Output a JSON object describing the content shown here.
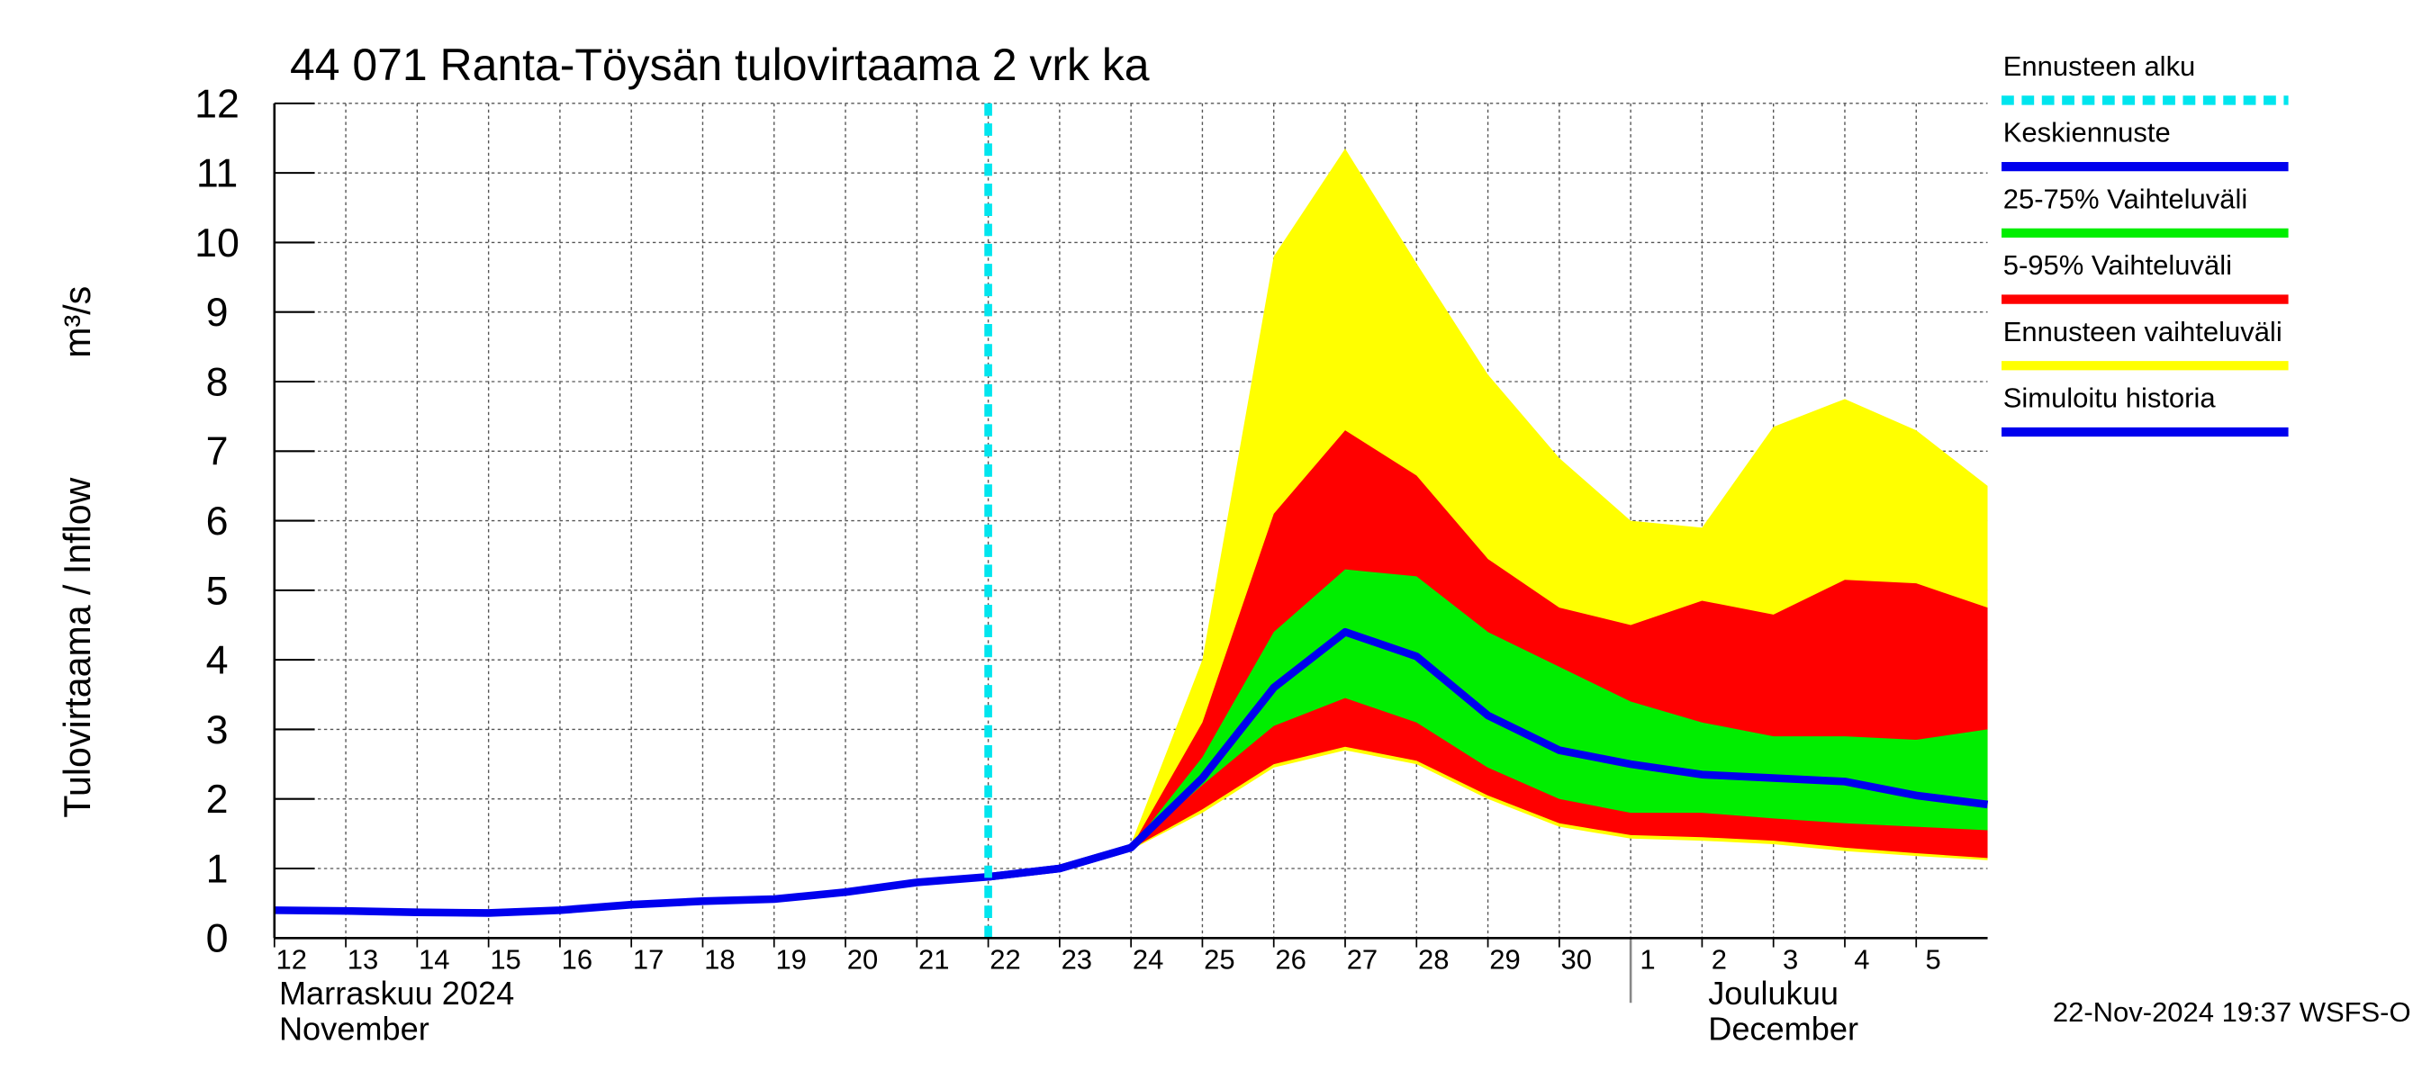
{
  "chart_data": {
    "type": "line",
    "title": "44 071 Ranta-Töysän tulovirtaama 2 vrk ka",
    "y_label": "Tulovirtaama / Inflow",
    "y_unit": "m³/s",
    "footer": "22-Nov-2024 19:37 WSFS-O",
    "months": [
      {
        "label": "Marraskuu 2024",
        "label_en": "November",
        "start": "2024-11-12"
      },
      {
        "label": "Joulukuu",
        "label_en": "December",
        "start": "2024-12-01"
      }
    ],
    "forecast_start": {
      "name": "Ennusteen alku",
      "color": "#00e5ee",
      "x": "2024-11-22"
    },
    "x": [
      "2024-11-12",
      "2024-11-13",
      "2024-11-14",
      "2024-11-15",
      "2024-11-16",
      "2024-11-17",
      "2024-11-18",
      "2024-11-19",
      "2024-11-20",
      "2024-11-21",
      "2024-11-22",
      "2024-11-23",
      "2024-11-24",
      "2024-11-25",
      "2024-11-26",
      "2024-11-27",
      "2024-11-28",
      "2024-11-29",
      "2024-11-30",
      "2024-12-01",
      "2024-12-02",
      "2024-12-03",
      "2024-12-04",
      "2024-12-05",
      "2024-12-06"
    ],
    "xlim": [
      "2024-11-12",
      "2024-12-06"
    ],
    "xticks": [
      {
        "value": "2024-11-12",
        "label": "12"
      },
      {
        "value": "2024-11-13",
        "label": "13"
      },
      {
        "value": "2024-11-14",
        "label": "14"
      },
      {
        "value": "2024-11-15",
        "label": "15"
      },
      {
        "value": "2024-11-16",
        "label": "16"
      },
      {
        "value": "2024-11-17",
        "label": "17"
      },
      {
        "value": "2024-11-18",
        "label": "18"
      },
      {
        "value": "2024-11-19",
        "label": "19"
      },
      {
        "value": "2024-11-20",
        "label": "20"
      },
      {
        "value": "2024-11-21",
        "label": "21"
      },
      {
        "value": "2024-11-22",
        "label": "22"
      },
      {
        "value": "2024-11-23",
        "label": "23"
      },
      {
        "value": "2024-11-24",
        "label": "24"
      },
      {
        "value": "2024-11-25",
        "label": "25"
      },
      {
        "value": "2024-11-26",
        "label": "26"
      },
      {
        "value": "2024-11-27",
        "label": "27"
      },
      {
        "value": "2024-11-28",
        "label": "28"
      },
      {
        "value": "2024-11-29",
        "label": "29"
      },
      {
        "value": "2024-11-30",
        "label": "30"
      },
      {
        "value": "2024-12-01",
        "label": "1"
      },
      {
        "value": "2024-12-02",
        "label": "2"
      },
      {
        "value": "2024-12-03",
        "label": "3"
      },
      {
        "value": "2024-12-04",
        "label": "4"
      },
      {
        "value": "2024-12-05",
        "label": "5"
      }
    ],
    "ylim": [
      0,
      12
    ],
    "yticks": [
      0,
      1,
      2,
      3,
      4,
      5,
      6,
      7,
      8,
      9,
      10,
      11,
      12
    ],
    "grid": true,
    "legend": "right",
    "bands": [
      {
        "name": "Ennusteen vaihteluväli",
        "color": "#ffff00",
        "low": [
          null,
          null,
          null,
          null,
          null,
          null,
          null,
          null,
          null,
          null,
          null,
          null,
          1.27,
          1.8,
          2.45,
          2.7,
          2.5,
          2.0,
          1.6,
          1.43,
          1.4,
          1.35,
          1.25,
          1.18,
          1.12
        ],
        "high": [
          null,
          null,
          null,
          null,
          null,
          null,
          null,
          null,
          null,
          null,
          null,
          null,
          1.35,
          4.0,
          9.8,
          11.35,
          9.7,
          8.1,
          6.9,
          6.0,
          5.9,
          7.35,
          7.75,
          7.3,
          6.5
        ]
      },
      {
        "name": "5-95% Vaihteluväli",
        "color": "#ff0000",
        "low": [
          null,
          null,
          null,
          null,
          null,
          null,
          null,
          null,
          null,
          null,
          null,
          null,
          1.28,
          1.85,
          2.5,
          2.75,
          2.55,
          2.05,
          1.65,
          1.48,
          1.45,
          1.4,
          1.3,
          1.22,
          1.15
        ],
        "high": [
          null,
          null,
          null,
          null,
          null,
          null,
          null,
          null,
          null,
          null,
          null,
          null,
          1.3,
          3.1,
          6.1,
          7.3,
          6.65,
          5.45,
          4.75,
          4.5,
          4.85,
          4.65,
          5.15,
          5.1,
          4.75
        ]
      },
      {
        "name": "25-75% Vaihteluväli",
        "color": "#00ee00",
        "low": [
          null,
          null,
          null,
          null,
          null,
          null,
          null,
          null,
          null,
          null,
          null,
          null,
          1.3,
          2.2,
          3.05,
          3.45,
          3.1,
          2.45,
          2.0,
          1.8,
          1.8,
          1.72,
          1.65,
          1.6,
          1.55
        ],
        "high": [
          null,
          null,
          null,
          null,
          null,
          null,
          null,
          null,
          null,
          null,
          null,
          null,
          1.3,
          2.6,
          4.4,
          5.3,
          5.2,
          4.4,
          3.9,
          3.4,
          3.1,
          2.9,
          2.9,
          2.85,
          3.0
        ]
      }
    ],
    "series": [
      {
        "name": "Simuloitu historia",
        "color": "#0000ee",
        "values": [
          0.4,
          0.39,
          0.37,
          0.36,
          0.4,
          0.48,
          0.53,
          0.56,
          0.66,
          0.8,
          0.88,
          1.0,
          1.3,
          null,
          null,
          null,
          null,
          null,
          null,
          null,
          null,
          null,
          null,
          null,
          null
        ]
      },
      {
        "name": "Keskiennuste",
        "color": "#0000ee",
        "values": [
          null,
          null,
          null,
          null,
          null,
          null,
          null,
          null,
          null,
          null,
          0.88,
          1.0,
          1.3,
          2.3,
          3.6,
          4.4,
          4.05,
          3.2,
          2.7,
          2.5,
          2.35,
          2.3,
          2.25,
          2.05,
          1.92
        ]
      }
    ],
    "legend_order": [
      "forecast_start",
      "series.1",
      "bands.2",
      "bands.1",
      "bands.0",
      "series.0"
    ]
  }
}
